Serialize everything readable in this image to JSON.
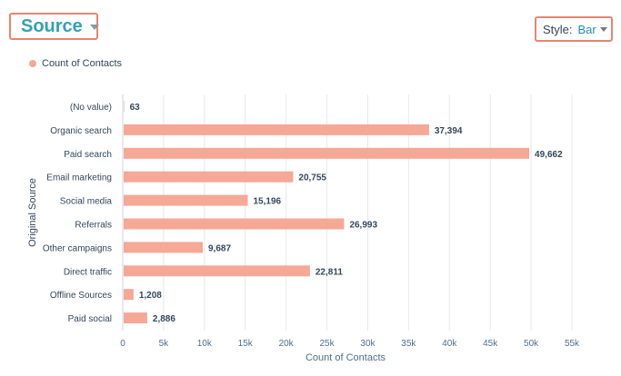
{
  "header": {
    "title": "Source",
    "style_label": "Style:",
    "style_value": "Bar"
  },
  "legend": {
    "label": "Count of Contacts"
  },
  "colors": {
    "bar": "#f5a896",
    "accent_border": "#e8856f",
    "title": "#33a1b5"
  },
  "chart_data": {
    "type": "bar",
    "orientation": "horizontal",
    "categories": [
      "(No value)",
      "Organic search",
      "Paid search",
      "Email marketing",
      "Social media",
      "Referrals",
      "Other campaigns",
      "Direct traffic",
      "Offline Sources",
      "Paid social"
    ],
    "values": [
      63,
      37394,
      49662,
      20755,
      15196,
      26993,
      9687,
      22811,
      1208,
      2886
    ],
    "value_labels": [
      "63",
      "37,394",
      "49,662",
      "20,755",
      "15,196",
      "26,993",
      "9,687",
      "22,811",
      "1,208",
      "2,886"
    ],
    "series_name": "Count of Contacts",
    "xlabel": "Count of Contacts",
    "ylabel": "Original Source",
    "xlim": [
      0,
      55000
    ],
    "x_ticks": [
      0,
      5000,
      10000,
      15000,
      20000,
      25000,
      30000,
      35000,
      40000,
      45000,
      50000,
      55000
    ],
    "x_tick_labels": [
      "0",
      "5k",
      "10k",
      "15k",
      "20k",
      "25k",
      "30k",
      "35k",
      "40k",
      "45k",
      "50k",
      "55k"
    ],
    "grid": true,
    "legend_position": "top-left"
  }
}
